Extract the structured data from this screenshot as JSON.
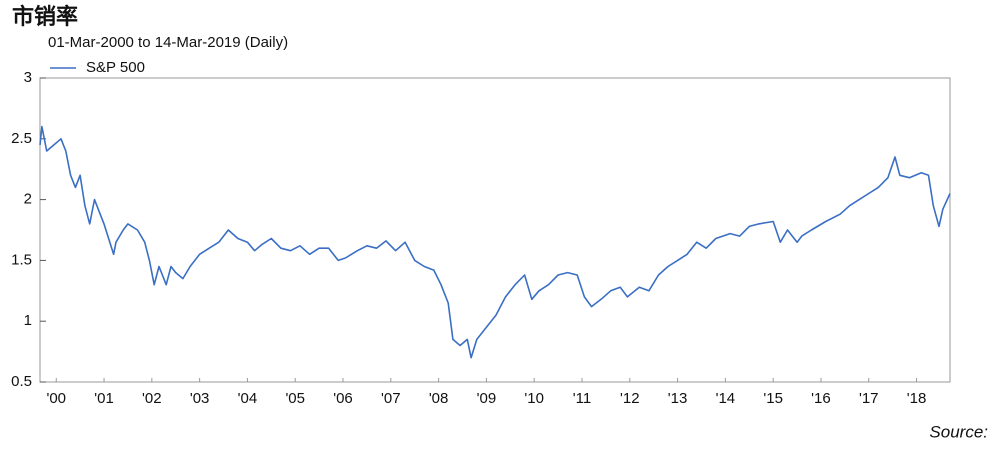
{
  "chart_data": {
    "type": "line",
    "title": "市销率",
    "subtitle": "01-Mar-2000 to 14-Mar-2019 (Daily)",
    "source": "Source:",
    "legend": "upper left",
    "x": [
      2000.16,
      2000.2,
      2000.3,
      2000.45,
      2000.6,
      2000.7,
      2000.8,
      2000.9,
      2001.0,
      2001.1,
      2001.2,
      2001.3,
      2001.5,
      2001.7,
      2001.75,
      2001.9,
      2002.0,
      2002.2,
      2002.35,
      2002.45,
      2002.55,
      2002.65,
      2002.8,
      2002.9,
      2003.0,
      2003.15,
      2003.3,
      2003.5,
      2003.7,
      2003.9,
      2004.1,
      2004.3,
      2004.5,
      2004.65,
      2004.8,
      2005.0,
      2005.2,
      2005.4,
      2005.6,
      2005.8,
      2006.0,
      2006.2,
      2006.4,
      2006.55,
      2006.8,
      2007.0,
      2007.2,
      2007.4,
      2007.6,
      2007.8,
      2008.0,
      2008.2,
      2008.4,
      2008.55,
      2008.7,
      2008.8,
      2008.95,
      2009.1,
      2009.18,
      2009.3,
      2009.5,
      2009.7,
      2009.9,
      2010.1,
      2010.3,
      2010.45,
      2010.6,
      2010.8,
      2011.0,
      2011.2,
      2011.4,
      2011.55,
      2011.7,
      2011.9,
      2012.1,
      2012.3,
      2012.45,
      2012.7,
      2012.9,
      2013.1,
      2013.3,
      2013.5,
      2013.7,
      2013.9,
      2014.1,
      2014.3,
      2014.6,
      2014.8,
      2015.0,
      2015.2,
      2015.5,
      2015.65,
      2015.8,
      2016.0,
      2016.1,
      2016.3,
      2016.6,
      2016.9,
      2017.1,
      2017.3,
      2017.5,
      2017.7,
      2017.9,
      2018.05,
      2018.15,
      2018.35,
      2018.6,
      2018.75,
      2018.85,
      2018.97,
      2019.05,
      2019.2
    ],
    "series": [
      {
        "name": "S&P 500",
        "color": "#3a6fc4",
        "values": [
          2.45,
          2.6,
          2.4,
          2.45,
          2.5,
          2.4,
          2.2,
          2.1,
          2.2,
          1.95,
          1.8,
          2.0,
          1.8,
          1.55,
          1.65,
          1.75,
          1.8,
          1.75,
          1.65,
          1.5,
          1.3,
          1.45,
          1.3,
          1.45,
          1.4,
          1.35,
          1.45,
          1.55,
          1.6,
          1.65,
          1.75,
          1.68,
          1.65,
          1.58,
          1.63,
          1.68,
          1.6,
          1.58,
          1.62,
          1.55,
          1.6,
          1.6,
          1.5,
          1.52,
          1.58,
          1.62,
          1.6,
          1.66,
          1.58,
          1.65,
          1.5,
          1.45,
          1.42,
          1.3,
          1.15,
          0.85,
          0.8,
          0.85,
          0.7,
          0.85,
          0.95,
          1.05,
          1.2,
          1.3,
          1.38,
          1.18,
          1.25,
          1.3,
          1.38,
          1.4,
          1.38,
          1.2,
          1.12,
          1.18,
          1.25,
          1.28,
          1.2,
          1.28,
          1.25,
          1.38,
          1.45,
          1.5,
          1.55,
          1.65,
          1.6,
          1.68,
          1.72,
          1.7,
          1.78,
          1.8,
          1.82,
          1.65,
          1.75,
          1.65,
          1.7,
          1.75,
          1.82,
          1.88,
          1.95,
          2.0,
          2.05,
          2.1,
          2.18,
          2.35,
          2.2,
          2.18,
          2.22,
          2.2,
          1.95,
          1.78,
          1.92,
          2.05
        ]
      }
    ],
    "xlim": [
      2000.16,
      2019.2
    ],
    "xticks": [
      {
        "value": 2000.5,
        "label": "'00"
      },
      {
        "value": 2001.5,
        "label": "'01"
      },
      {
        "value": 2002.5,
        "label": "'02"
      },
      {
        "value": 2003.5,
        "label": "'03"
      },
      {
        "value": 2004.5,
        "label": "'04"
      },
      {
        "value": 2005.5,
        "label": "'05"
      },
      {
        "value": 2006.5,
        "label": "'06"
      },
      {
        "value": 2007.5,
        "label": "'07"
      },
      {
        "value": 2008.5,
        "label": "'08"
      },
      {
        "value": 2009.5,
        "label": "'09"
      },
      {
        "value": 2010.5,
        "label": "'10"
      },
      {
        "value": 2011.5,
        "label": "'11"
      },
      {
        "value": 2012.5,
        "label": "'12"
      },
      {
        "value": 2013.5,
        "label": "'13"
      },
      {
        "value": 2014.5,
        "label": "'14"
      },
      {
        "value": 2015.5,
        "label": "'15"
      },
      {
        "value": 2016.5,
        "label": "'16"
      },
      {
        "value": 2017.5,
        "label": "'17"
      },
      {
        "value": 2018.5,
        "label": "'18"
      }
    ],
    "ylim": [
      0.5,
      3
    ],
    "yticks": [
      0.5,
      1,
      1.5,
      2,
      2.5,
      3
    ]
  }
}
